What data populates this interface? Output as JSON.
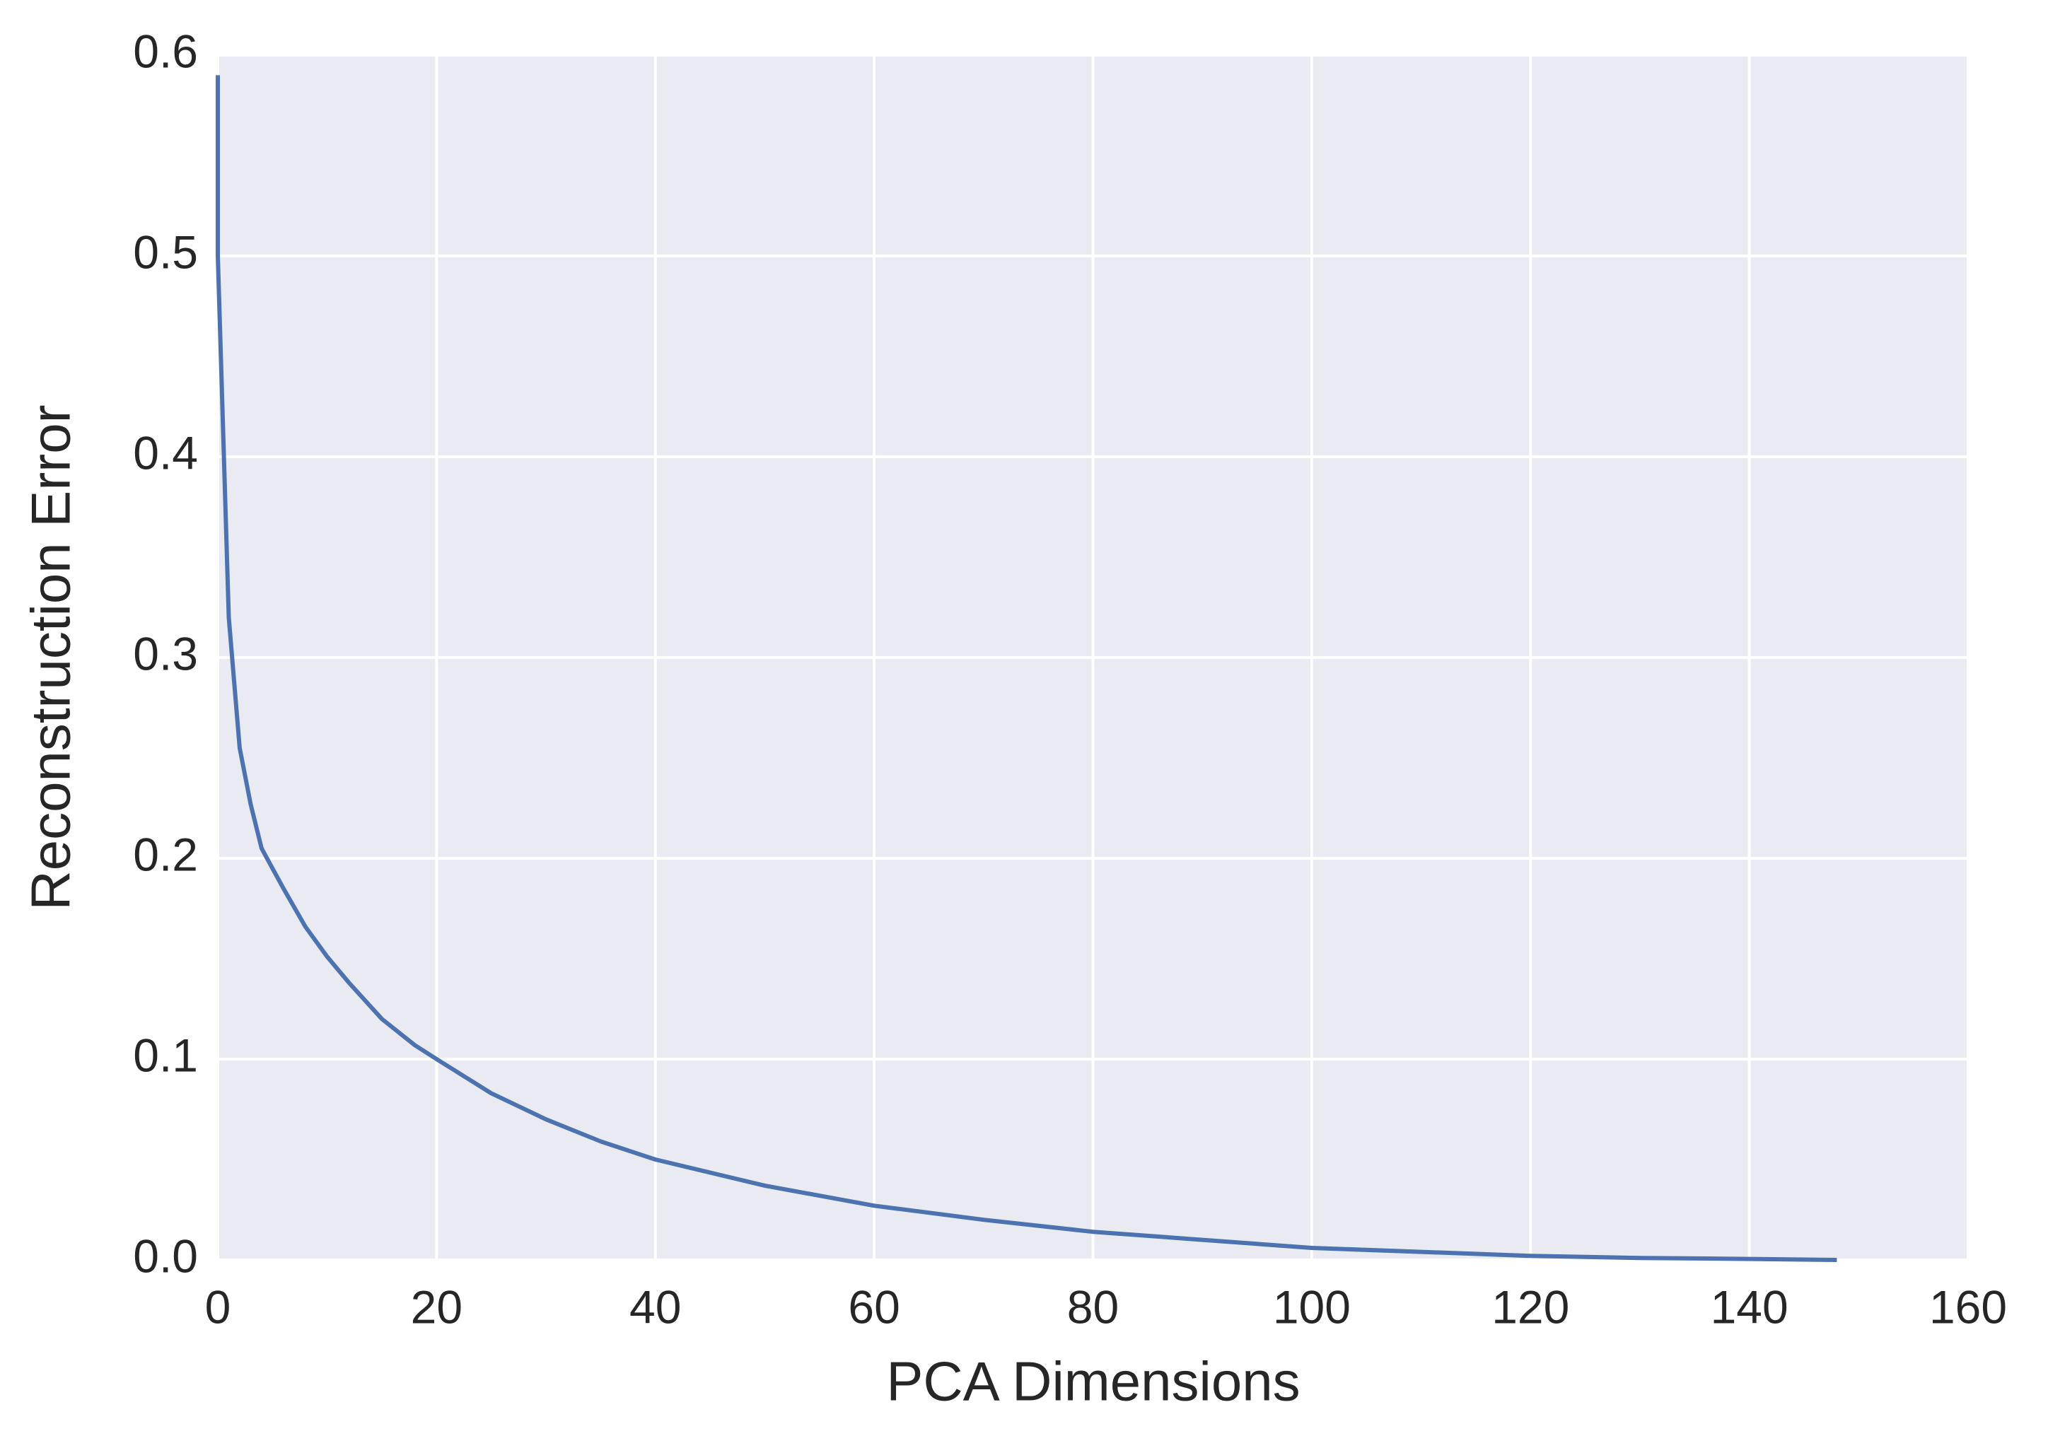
{
  "chart_data": {
    "type": "line",
    "xlabel": "PCA Dimensions",
    "ylabel": "Reconstruction Error",
    "x": [
      0,
      0,
      1,
      2,
      3,
      4,
      5,
      6,
      8,
      10,
      12,
      15,
      18,
      20,
      25,
      30,
      35,
      40,
      50,
      60,
      70,
      80,
      90,
      100,
      110,
      120,
      130,
      140,
      148
    ],
    "values": [
      0.59,
      0.5,
      0.32,
      0.255,
      0.227,
      0.205,
      0.195,
      0.185,
      0.166,
      0.151,
      0.138,
      0.12,
      0.107,
      0.1,
      0.083,
      0.07,
      0.059,
      0.05,
      0.037,
      0.027,
      0.02,
      0.014,
      0.01,
      0.006,
      0.004,
      0.002,
      0.001,
      0.0005,
      0
    ],
    "color": "#4c72b0",
    "xlim": [
      0,
      160
    ],
    "xticks": [
      0,
      20,
      40,
      60,
      80,
      100,
      120,
      140,
      160
    ],
    "ylim": [
      0,
      0.6
    ],
    "yticks": [
      {
        "value": 0,
        "label": "0.0"
      },
      0.1,
      0.2,
      0.3,
      0.4,
      0.5,
      0.6
    ],
    "grid": true
  }
}
